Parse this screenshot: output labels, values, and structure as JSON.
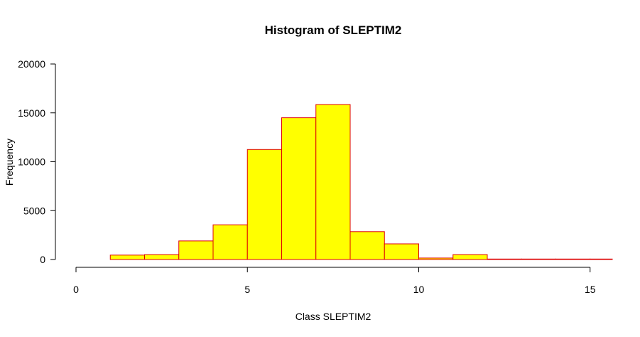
{
  "chart_data": {
    "type": "bar",
    "title": "Histogram of SLEPTIM2",
    "xlabel": "Class SLEPTIM2",
    "ylabel": "Frequency",
    "xlim": [
      0,
      15.6
    ],
    "ylim": [
      0,
      20000
    ],
    "x_ticks": [
      0,
      5,
      10,
      15
    ],
    "y_ticks": [
      0,
      5000,
      10000,
      15000,
      20000
    ],
    "bins": [
      {
        "start": 1,
        "end": 2,
        "value": 450
      },
      {
        "start": 2,
        "end": 3,
        "value": 500
      },
      {
        "start": 3,
        "end": 4,
        "value": 1900
      },
      {
        "start": 4,
        "end": 5,
        "value": 3550
      },
      {
        "start": 5,
        "end": 6,
        "value": 11250
      },
      {
        "start": 6,
        "end": 7,
        "value": 14500
      },
      {
        "start": 7,
        "end": 8,
        "value": 15850
      },
      {
        "start": 8,
        "end": 9,
        "value": 2850
      },
      {
        "start": 9,
        "end": 10,
        "value": 1600
      },
      {
        "start": 10,
        "end": 11,
        "value": 150
      },
      {
        "start": 11,
        "end": 12,
        "value": 500
      },
      {
        "start": 12,
        "end": 13,
        "value": 50
      },
      {
        "start": 13,
        "end": 14,
        "value": 50
      },
      {
        "start": 14,
        "end": 15,
        "value": 50
      },
      {
        "start": 15,
        "end": 16,
        "value": 50
      }
    ],
    "grid": false,
    "colors": {
      "fill": "#ffff00",
      "border": "#dd0000",
      "axis": "#000000"
    }
  }
}
